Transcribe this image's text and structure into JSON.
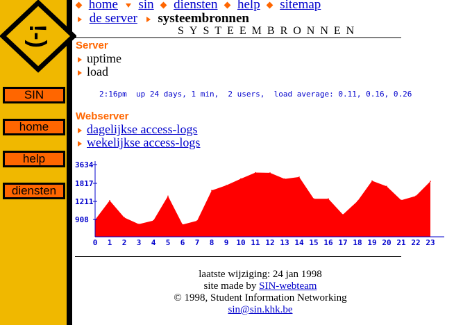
{
  "sidebar": {
    "logo_text": "!-)",
    "buttons": [
      "SIN",
      "home",
      "help",
      "diensten"
    ]
  },
  "breadcrumb": {
    "items": [
      "home",
      "sin",
      "diensten",
      "help",
      "sitemap"
    ],
    "server_link": "de server",
    "current": "systeembronnen"
  },
  "page_title": "SYSTEEMBRONNEN",
  "server": {
    "heading": "Server",
    "items": [
      "uptime",
      "load"
    ],
    "status": "2:16pm  up 24 days, 1 min,  2 users,  load average: 0.11, 0.16, 0.26"
  },
  "webserver": {
    "heading": "Webserver",
    "links": [
      "dagelijkse access-logs",
      "wekelijkse access-logs"
    ]
  },
  "chart_data": {
    "type": "area",
    "x": [
      0,
      1,
      2,
      3,
      4,
      5,
      6,
      7,
      8,
      9,
      10,
      11,
      12,
      13,
      14,
      15,
      16,
      17,
      18,
      19,
      20,
      21,
      22,
      23
    ],
    "x_tick_labels": [
      "0",
      "1",
      "2",
      "3",
      "4",
      "5",
      "6",
      "7",
      "8",
      "9",
      "10",
      "11",
      "12",
      "13",
      "14",
      "15",
      "16",
      "17",
      "18",
      "19",
      "20",
      "21",
      "22",
      "23"
    ],
    "y_tick_values": [
      908,
      1211,
      1817,
      3634
    ],
    "y_tick_labels": [
      "908",
      "1211",
      "1817",
      "3634"
    ],
    "values": [
      890,
      1240,
      940,
      660,
      850,
      1390,
      640,
      840,
      1580,
      1750,
      2260,
      2860,
      2830,
      2250,
      2430,
      1300,
      1300,
      990,
      1220,
      2060,
      1720,
      1250,
      1390,
      2010
    ],
    "color": "#ff0000"
  },
  "footer": {
    "modified": "laatste wijziging: 24 jan 1998",
    "made_prefix": "site made by ",
    "made_link": "SIN-webteam",
    "copyright": "© 1998, Student Information Networking",
    "email": "sin@sin.khk.be"
  }
}
